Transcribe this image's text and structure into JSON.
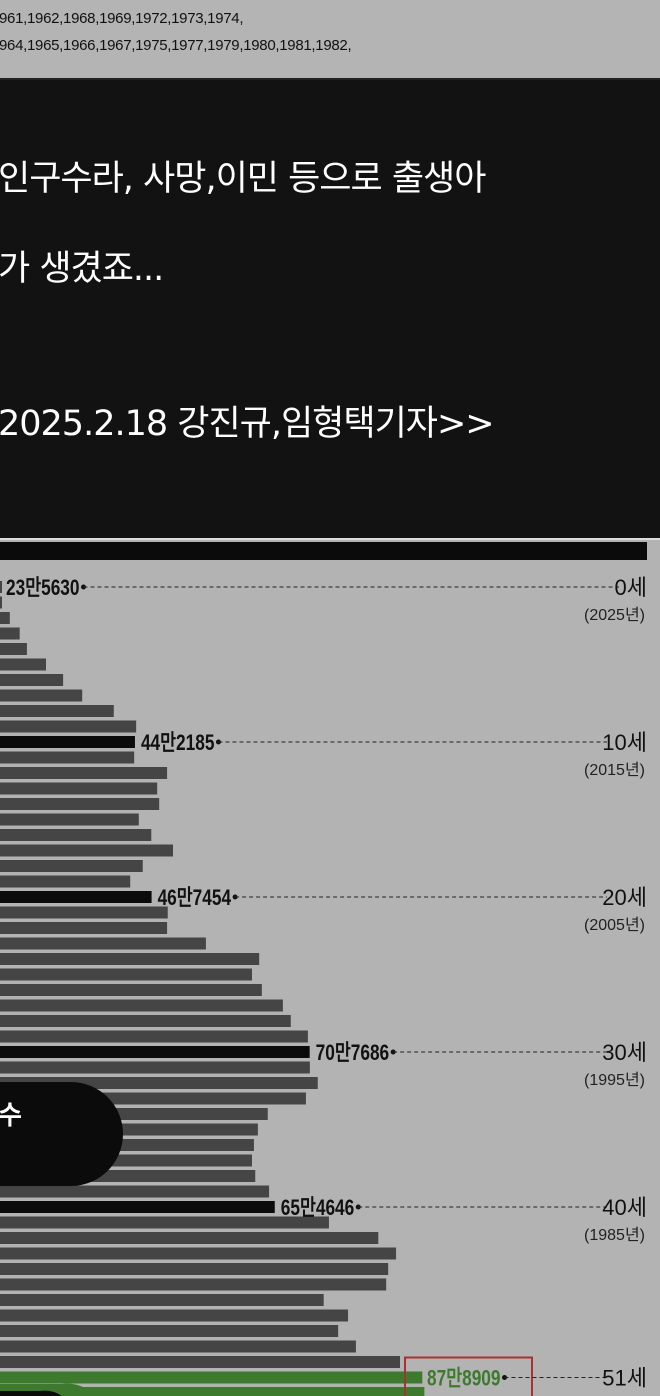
{
  "years_text": {
    "line1": "961,1962,1968,1969,1972,1973,1974,",
    "line2": "964,1965,1966,1967,1975,1977,1979,1980,1981,1982,"
  },
  "caption": {
    "line1": "인구수라, 사망,이민 등으로 출생아",
    "line2": "가 생겼죠...",
    "line3": "2025.2.18 강진규,임형택기자>>"
  },
  "pill_text": "수",
  "colors": {
    "bar": "#454545",
    "highlight": "#0b0b0b",
    "green": "#3d7a2e",
    "background": "#b3b3b3",
    "red_box": "#a83232"
  },
  "chart_data": {
    "type": "bar",
    "orientation": "horizontal",
    "unit": "만",
    "ages": [
      0,
      1,
      2,
      3,
      4,
      5,
      6,
      7,
      8,
      9,
      10,
      11,
      12,
      13,
      14,
      15,
      16,
      17,
      18,
      19,
      20,
      21,
      22,
      23,
      24,
      25,
      26,
      27,
      28,
      29,
      30,
      31,
      32,
      33,
      34,
      35,
      36,
      37,
      38,
      39,
      40,
      41,
      42,
      43,
      44,
      45,
      46,
      47,
      48,
      49,
      50,
      51,
      52
    ],
    "values": [
      23.563,
      24.0,
      25.2,
      26.7,
      27.8,
      30.7,
      33.3,
      36.2,
      41.0,
      44.4,
      44.2185,
      44.1,
      49.1,
      47.6,
      47.9,
      44.8,
      46.7,
      50.0,
      45.4,
      43.5,
      46.7454,
      49.2,
      49.1,
      55.0,
      63.1,
      62.0,
      63.5,
      66.7,
      67.9,
      70.5,
      70.7686,
      70.8,
      72.0,
      70.2,
      64.4,
      62.9,
      62.3,
      62.0,
      62.5,
      64.6,
      65.4646,
      73.7,
      81.2,
      83.9,
      82.7,
      82.4,
      72.9,
      76.6,
      75.1,
      77.8,
      84.5,
      87.8909,
      88.2
    ],
    "highlight_ages": [
      10,
      20,
      30,
      40
    ],
    "green_ages": [
      51,
      52
    ],
    "annotations": [
      {
        "age": 0,
        "value_label": "23만5630",
        "age_label": "0세",
        "year_label": "(2025년)"
      },
      {
        "age": 10,
        "value_label": "44만2185",
        "age_label": "10세",
        "year_label": "(2015년)"
      },
      {
        "age": 20,
        "value_label": "46만7454",
        "age_label": "20세",
        "year_label": "(2005년)"
      },
      {
        "age": 30,
        "value_label": "70만7686",
        "age_label": "30세",
        "year_label": "(1995년)"
      },
      {
        "age": 40,
        "value_label": "65만4646",
        "age_label": "40세",
        "year_label": "(1985년)"
      },
      {
        "age": 51,
        "value_label": "87만8909",
        "age_label": "51세",
        "year_label": ""
      }
    ]
  }
}
